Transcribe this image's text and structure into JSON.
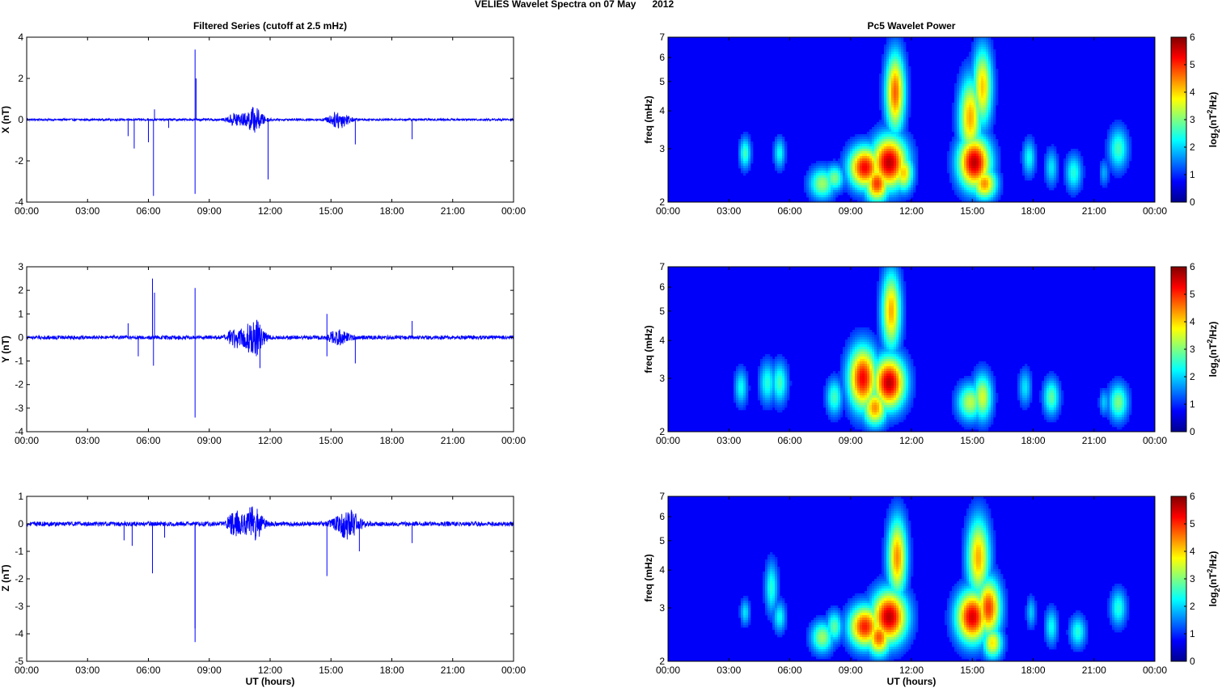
{
  "figure": {
    "title": "VELIES Wavelet Spectra on 07 May      2012"
  },
  "chart_data": [
    {
      "type": "line",
      "id": "x-series",
      "title": "Filtered Series (cutoff at 2.5 mHz)",
      "xlabel": "",
      "ylabel": "X (nT)",
      "x_ticks": [
        "00:00",
        "03:00",
        "06:00",
        "09:00",
        "12:00",
        "15:00",
        "18:00",
        "21:00",
        "00:00"
      ],
      "xlim_hours": [
        0,
        24
      ],
      "ylim": [
        -4,
        4
      ],
      "y_ticks": [
        -4,
        -2,
        0,
        2,
        4
      ],
      "line_color": "#0000ff",
      "baseline_amplitude": 0.05,
      "bursts": [
        {
          "center_h": 10.3,
          "width_h": 0.35,
          "amp": 0.35
        },
        {
          "center_h": 11.2,
          "width_h": 0.45,
          "amp": 0.6
        },
        {
          "center_h": 15.4,
          "width_h": 0.5,
          "amp": 0.4
        }
      ],
      "spikes": [
        {
          "t_h": 5.0,
          "v": -0.8
        },
        {
          "t_h": 5.3,
          "v": -1.4
        },
        {
          "t_h": 6.0,
          "v": -1.1
        },
        {
          "t_h": 6.25,
          "v": -3.7
        },
        {
          "t_h": 6.3,
          "v": 0.5
        },
        {
          "t_h": 7.0,
          "v": -0.4
        },
        {
          "t_h": 8.3,
          "v": 3.4
        },
        {
          "t_h": 8.3,
          "v": -3.6
        },
        {
          "t_h": 8.35,
          "v": 2.0
        },
        {
          "t_h": 11.9,
          "v": -2.9
        },
        {
          "t_h": 16.2,
          "v": -1.2
        },
        {
          "t_h": 19.0,
          "v": -0.95
        }
      ]
    },
    {
      "type": "line",
      "id": "y-series",
      "title": "",
      "xlabel": "",
      "ylabel": "Y (nT)",
      "x_ticks": [
        "00:00",
        "03:00",
        "06:00",
        "09:00",
        "12:00",
        "15:00",
        "18:00",
        "21:00",
        "00:00"
      ],
      "xlim_hours": [
        0,
        24
      ],
      "ylim": [
        -4,
        3
      ],
      "y_ticks": [
        -4,
        -3,
        -2,
        -1,
        0,
        1,
        2,
        3
      ],
      "line_color": "#0000ff",
      "baseline_amplitude": 0.08,
      "bursts": [
        {
          "center_h": 10.3,
          "width_h": 0.35,
          "amp": 0.45
        },
        {
          "center_h": 11.2,
          "width_h": 0.45,
          "amp": 0.8
        },
        {
          "center_h": 15.4,
          "width_h": 0.5,
          "amp": 0.3
        }
      ],
      "spikes": [
        {
          "t_h": 5.0,
          "v": 0.6
        },
        {
          "t_h": 5.5,
          "v": -0.8
        },
        {
          "t_h": 6.2,
          "v": 2.5
        },
        {
          "t_h": 6.25,
          "v": -1.2
        },
        {
          "t_h": 6.3,
          "v": 1.9
        },
        {
          "t_h": 8.3,
          "v": 2.1
        },
        {
          "t_h": 8.3,
          "v": -3.4
        },
        {
          "t_h": 11.5,
          "v": -1.3
        },
        {
          "t_h": 14.8,
          "v": 1.0
        },
        {
          "t_h": 14.8,
          "v": -0.8
        },
        {
          "t_h": 16.2,
          "v": -1.1
        },
        {
          "t_h": 19.0,
          "v": 0.7
        }
      ]
    },
    {
      "type": "line",
      "id": "z-series",
      "title": "",
      "xlabel": "UT (hours)",
      "ylabel": "Z (nT)",
      "x_ticks": [
        "00:00",
        "03:00",
        "06:00",
        "09:00",
        "12:00",
        "15:00",
        "18:00",
        "21:00",
        "00:00"
      ],
      "xlim_hours": [
        0,
        24
      ],
      "ylim": [
        -5,
        1
      ],
      "y_ticks": [
        -5,
        -4,
        -3,
        -2,
        -1,
        0,
        1
      ],
      "line_color": "#0000ff",
      "baseline_amplitude": 0.08,
      "bursts": [
        {
          "center_h": 10.3,
          "width_h": 0.4,
          "amp": 0.4
        },
        {
          "center_h": 11.2,
          "width_h": 0.45,
          "amp": 0.6
        },
        {
          "center_h": 15.8,
          "width_h": 0.6,
          "amp": 0.5
        }
      ],
      "spikes": [
        {
          "t_h": 4.8,
          "v": -0.6
        },
        {
          "t_h": 5.2,
          "v": -0.8
        },
        {
          "t_h": 6.2,
          "v": -1.8
        },
        {
          "t_h": 6.8,
          "v": -0.5
        },
        {
          "t_h": 8.3,
          "v": -4.3
        },
        {
          "t_h": 8.3,
          "v": -3.8
        },
        {
          "t_h": 11.0,
          "v": 0.6
        },
        {
          "t_h": 14.8,
          "v": -1.9
        },
        {
          "t_h": 16.4,
          "v": -1.0
        },
        {
          "t_h": 19.0,
          "v": -0.7
        }
      ]
    },
    {
      "type": "heatmap",
      "id": "x-power",
      "title": "Pc5 Wavelet Power",
      "xlabel": "",
      "ylabel": "freq (mHz)",
      "x_ticks": [
        "00:00",
        "03:00",
        "06:00",
        "09:00",
        "12:00",
        "15:00",
        "18:00",
        "21:00",
        "00:00"
      ],
      "xlim_hours": [
        0,
        24
      ],
      "ylim_mhz": [
        2,
        7
      ],
      "y_scale": "log",
      "y_ticks": [
        2,
        3,
        4,
        5,
        6,
        7
      ],
      "colorbar": {
        "label": "log2(nT2/Hz)",
        "range": [
          0,
          6
        ],
        "ticks": [
          0,
          1,
          2,
          3,
          4,
          5,
          6
        ],
        "colormap": "jet"
      },
      "blobs": [
        {
          "t_h": 3.8,
          "f": 2.9,
          "dt": 0.07,
          "df": 0.12,
          "p": 2.2
        },
        {
          "t_h": 5.5,
          "f": 2.9,
          "dt": 0.07,
          "df": 0.12,
          "p": 1.8
        },
        {
          "t_h": 7.6,
          "f": 2.3,
          "dt": 0.16,
          "df": 0.12,
          "p": 2.8
        },
        {
          "t_h": 8.2,
          "f": 2.4,
          "dt": 0.12,
          "df": 0.1,
          "p": 2.6
        },
        {
          "t_h": 9.7,
          "f": 2.6,
          "dt": 0.2,
          "df": 0.16,
          "p": 5.2
        },
        {
          "t_h": 10.3,
          "f": 2.3,
          "dt": 0.15,
          "df": 0.14,
          "p": 4.8
        },
        {
          "t_h": 10.9,
          "f": 2.7,
          "dt": 0.22,
          "df": 0.2,
          "p": 5.6
        },
        {
          "t_h": 11.2,
          "f": 4.6,
          "dt": 0.12,
          "df": 0.3,
          "p": 4.5
        },
        {
          "t_h": 11.6,
          "f": 2.5,
          "dt": 0.12,
          "df": 0.14,
          "p": 3.8
        },
        {
          "t_h": 14.9,
          "f": 3.8,
          "dt": 0.14,
          "df": 0.3,
          "p": 4.0
        },
        {
          "t_h": 15.1,
          "f": 2.7,
          "dt": 0.2,
          "df": 0.2,
          "p": 5.6
        },
        {
          "t_h": 15.5,
          "f": 4.8,
          "dt": 0.12,
          "df": 0.3,
          "p": 3.8
        },
        {
          "t_h": 15.6,
          "f": 2.3,
          "dt": 0.15,
          "df": 0.12,
          "p": 4.2
        },
        {
          "t_h": 17.8,
          "f": 2.8,
          "dt": 0.08,
          "df": 0.14,
          "p": 1.8
        },
        {
          "t_h": 18.9,
          "f": 2.6,
          "dt": 0.08,
          "df": 0.14,
          "p": 1.6
        },
        {
          "t_h": 20.0,
          "f": 2.5,
          "dt": 0.1,
          "df": 0.14,
          "p": 2.0
        },
        {
          "t_h": 21.5,
          "f": 2.5,
          "dt": 0.06,
          "df": 0.1,
          "p": 1.2
        },
        {
          "t_h": 22.2,
          "f": 3.0,
          "dt": 0.12,
          "df": 0.16,
          "p": 2.2
        }
      ]
    },
    {
      "type": "heatmap",
      "id": "y-power",
      "title": "",
      "xlabel": "",
      "ylabel": "freq (mHz)",
      "x_ticks": [
        "00:00",
        "03:00",
        "06:00",
        "09:00",
        "12:00",
        "15:00",
        "18:00",
        "21:00",
        "00:00"
      ],
      "xlim_hours": [
        0,
        24
      ],
      "ylim_mhz": [
        2,
        7
      ],
      "y_scale": "log",
      "y_ticks": [
        2,
        3,
        4,
        5,
        6,
        7
      ],
      "colorbar": {
        "label": "log2(nT2/Hz)",
        "range": [
          0,
          6
        ],
        "ticks": [
          0,
          1,
          2,
          3,
          4,
          5,
          6
        ],
        "colormap": "jet"
      },
      "blobs": [
        {
          "t_h": 3.6,
          "f": 2.8,
          "dt": 0.08,
          "df": 0.14,
          "p": 1.8
        },
        {
          "t_h": 4.9,
          "f": 2.9,
          "dt": 0.1,
          "df": 0.16,
          "p": 2.0
        },
        {
          "t_h": 5.5,
          "f": 2.9,
          "dt": 0.1,
          "df": 0.16,
          "p": 2.2
        },
        {
          "t_h": 8.2,
          "f": 2.6,
          "dt": 0.1,
          "df": 0.14,
          "p": 2.2
        },
        {
          "t_h": 9.6,
          "f": 3.0,
          "dt": 0.18,
          "df": 0.24,
          "p": 5.2
        },
        {
          "t_h": 10.2,
          "f": 2.4,
          "dt": 0.15,
          "df": 0.14,
          "p": 4.2
        },
        {
          "t_h": 10.9,
          "f": 2.9,
          "dt": 0.2,
          "df": 0.2,
          "p": 5.6
        },
        {
          "t_h": 11.0,
          "f": 5.0,
          "dt": 0.12,
          "df": 0.3,
          "p": 4.0
        },
        {
          "t_h": 14.9,
          "f": 2.5,
          "dt": 0.16,
          "df": 0.14,
          "p": 3.0
        },
        {
          "t_h": 15.5,
          "f": 2.6,
          "dt": 0.12,
          "df": 0.18,
          "p": 3.2
        },
        {
          "t_h": 17.6,
          "f": 2.8,
          "dt": 0.08,
          "df": 0.14,
          "p": 1.6
        },
        {
          "t_h": 18.9,
          "f": 2.6,
          "dt": 0.1,
          "df": 0.14,
          "p": 2.4
        },
        {
          "t_h": 21.5,
          "f": 2.5,
          "dt": 0.06,
          "df": 0.1,
          "p": 1.4
        },
        {
          "t_h": 22.2,
          "f": 2.5,
          "dt": 0.12,
          "df": 0.14,
          "p": 2.6
        }
      ]
    },
    {
      "type": "heatmap",
      "id": "z-power",
      "title": "",
      "xlabel": "UT (hours)",
      "ylabel": "freq (mHz)",
      "x_ticks": [
        "00:00",
        "03:00",
        "06:00",
        "09:00",
        "12:00",
        "15:00",
        "18:00",
        "21:00",
        "00:00"
      ],
      "xlim_hours": [
        0,
        24
      ],
      "ylim_mhz": [
        2,
        7
      ],
      "y_scale": "log",
      "y_ticks": [
        2,
        3,
        4,
        5,
        6,
        7
      ],
      "colorbar": {
        "label": "log2(nT2/Hz)",
        "range": [
          0,
          6
        ],
        "ticks": [
          0,
          1,
          2,
          3,
          4,
          5,
          6
        ],
        "colormap": "jet"
      },
      "blobs": [
        {
          "t_h": 3.8,
          "f": 2.9,
          "dt": 0.06,
          "df": 0.1,
          "p": 1.6
        },
        {
          "t_h": 5.1,
          "f": 3.5,
          "dt": 0.08,
          "df": 0.2,
          "p": 2.0
        },
        {
          "t_h": 5.5,
          "f": 2.8,
          "dt": 0.08,
          "df": 0.12,
          "p": 1.8
        },
        {
          "t_h": 7.6,
          "f": 2.4,
          "dt": 0.14,
          "df": 0.12,
          "p": 2.8
        },
        {
          "t_h": 8.2,
          "f": 2.6,
          "dt": 0.1,
          "df": 0.12,
          "p": 2.4
        },
        {
          "t_h": 9.7,
          "f": 2.6,
          "dt": 0.2,
          "df": 0.16,
          "p": 5.0
        },
        {
          "t_h": 10.4,
          "f": 2.4,
          "dt": 0.15,
          "df": 0.14,
          "p": 4.6
        },
        {
          "t_h": 10.9,
          "f": 2.8,
          "dt": 0.22,
          "df": 0.2,
          "p": 5.6
        },
        {
          "t_h": 11.3,
          "f": 4.4,
          "dt": 0.12,
          "df": 0.3,
          "p": 4.2
        },
        {
          "t_h": 15.0,
          "f": 2.8,
          "dt": 0.2,
          "df": 0.2,
          "p": 5.4
        },
        {
          "t_h": 15.3,
          "f": 4.4,
          "dt": 0.14,
          "df": 0.3,
          "p": 4.0
        },
        {
          "t_h": 15.8,
          "f": 3.0,
          "dt": 0.15,
          "df": 0.22,
          "p": 4.8
        },
        {
          "t_h": 16.0,
          "f": 2.3,
          "dt": 0.12,
          "df": 0.12,
          "p": 3.6
        },
        {
          "t_h": 17.9,
          "f": 2.9,
          "dt": 0.06,
          "df": 0.12,
          "p": 1.4
        },
        {
          "t_h": 18.9,
          "f": 2.6,
          "dt": 0.08,
          "df": 0.14,
          "p": 1.8
        },
        {
          "t_h": 20.2,
          "f": 2.5,
          "dt": 0.1,
          "df": 0.12,
          "p": 2.0
        },
        {
          "t_h": 22.2,
          "f": 3.0,
          "dt": 0.1,
          "df": 0.14,
          "p": 2.0
        }
      ]
    }
  ]
}
